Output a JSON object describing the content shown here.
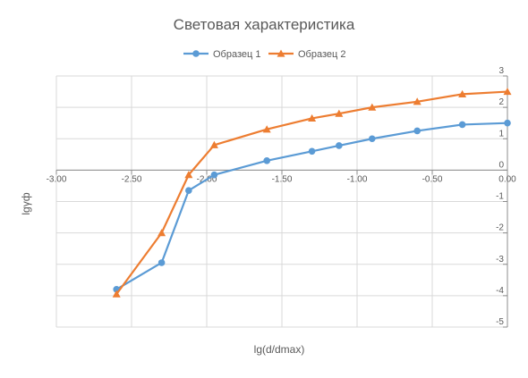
{
  "chart_data": {
    "type": "line",
    "title": "Световая характеристика",
    "xlabel": "lg(d/dmax)",
    "ylabel": "lgγф",
    "xlim": [
      -3.0,
      0.0
    ],
    "ylim": [
      -5,
      3
    ],
    "x_ticks": [
      -3.0,
      -2.5,
      -2.0,
      -1.5,
      -1.0,
      -0.5,
      0.0
    ],
    "x_tick_labels": [
      "-3.00",
      "-2.50",
      "-2.00",
      "-1.50",
      "-1.00",
      "-0.50",
      "0.00"
    ],
    "y_ticks": [
      -5,
      -4,
      -3,
      -2,
      -1,
      0,
      1,
      2,
      3
    ],
    "y_tick_labels": [
      "-5",
      "-4",
      "-3",
      "-2",
      "-1",
      "0",
      "1",
      "2",
      "3"
    ],
    "grid": true,
    "legend_position": "top",
    "series": [
      {
        "name": "Образец 1",
        "color": "#5B9BD5",
        "marker": "circle",
        "x": [
          -2.6,
          -2.3,
          -2.12,
          -1.95,
          -1.6,
          -1.3,
          -1.12,
          -0.9,
          -0.6,
          -0.3,
          0.0
        ],
        "y": [
          -3.8,
          -2.95,
          -0.65,
          -0.15,
          0.3,
          0.6,
          0.78,
          1.0,
          1.25,
          1.45,
          1.5
        ]
      },
      {
        "name": "Образец 2",
        "color": "#ED7D31",
        "marker": "triangle",
        "x": [
          -2.6,
          -2.3,
          -2.12,
          -1.95,
          -1.6,
          -1.3,
          -1.12,
          -0.9,
          -0.6,
          -0.3,
          0.0
        ],
        "y": [
          -3.95,
          -2.0,
          -0.15,
          0.8,
          1.3,
          1.65,
          1.8,
          2.0,
          2.18,
          2.42,
          2.5
        ]
      }
    ]
  }
}
